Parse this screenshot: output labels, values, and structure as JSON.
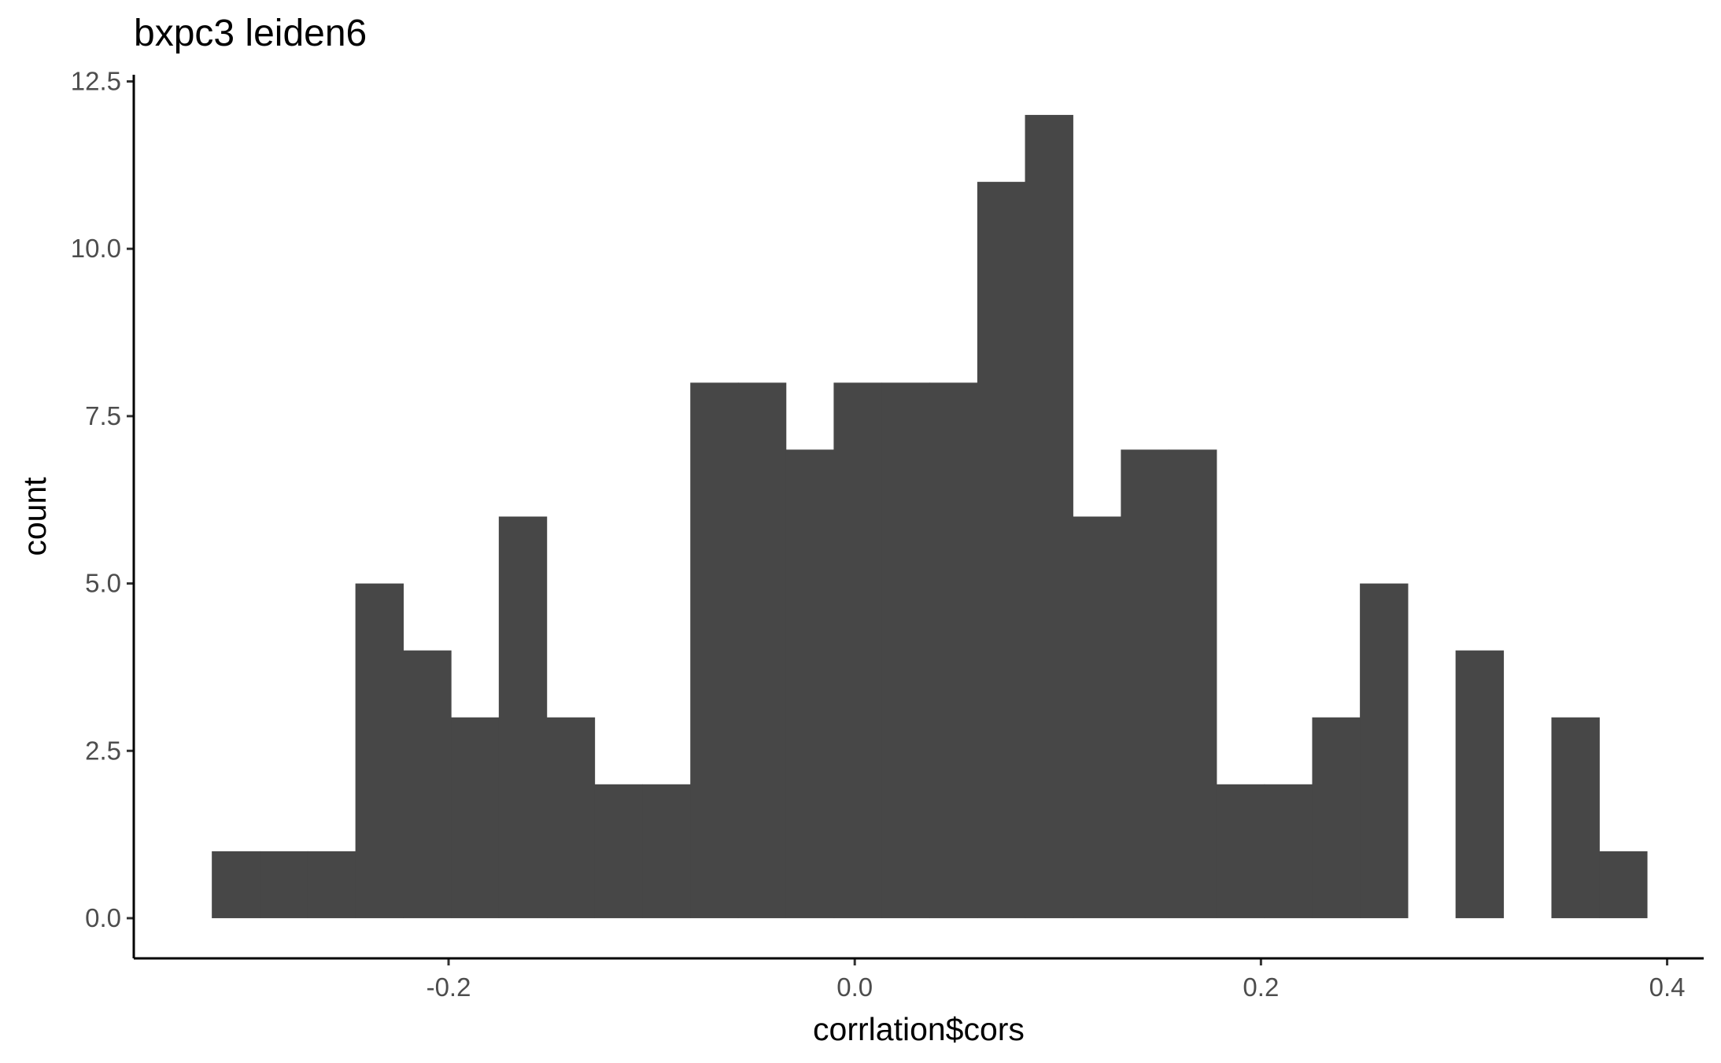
{
  "chart_data": {
    "type": "bar",
    "subtype": "histogram",
    "title": "bxpc3 leiden6",
    "xlabel": "corrlation$cors",
    "ylabel": "count",
    "xlim": [
      -0.355,
      0.418
    ],
    "ylim": [
      -0.6,
      12.6
    ],
    "x_ticks": [
      -0.2,
      0.0,
      0.2,
      0.4
    ],
    "x_tick_labels": [
      "-0.2",
      "0.0",
      "0.2",
      "0.4"
    ],
    "y_ticks": [
      0.0,
      2.5,
      5.0,
      7.5,
      10.0,
      12.5
    ],
    "y_tick_labels": [
      "0.0",
      "2.5",
      "5.0",
      "7.5",
      "10.0",
      "12.5"
    ],
    "bin_width": 0.02356,
    "bin_centers": [
      -0.3048,
      -0.2812,
      -0.2577,
      -0.2341,
      -0.2106,
      -0.187,
      -0.1635,
      -0.1399,
      -0.1164,
      -0.0928,
      -0.0692,
      -0.0457,
      -0.0221,
      0.0014,
      0.025,
      0.0485,
      0.0721,
      0.0956,
      0.1192,
      0.1428,
      0.1663,
      0.1899,
      0.2134,
      0.237,
      0.2605,
      0.2841,
      0.3076,
      0.3312,
      0.3548,
      0.3783
    ],
    "counts": [
      1,
      1,
      1,
      5,
      4,
      3,
      6,
      3,
      2,
      2,
      8,
      8,
      7,
      8,
      8,
      8,
      11,
      12,
      6,
      7,
      7,
      2,
      2,
      3,
      5,
      0,
      4,
      0,
      3,
      1
    ],
    "bar_color": "#474747",
    "grid": false,
    "legend": "none"
  }
}
